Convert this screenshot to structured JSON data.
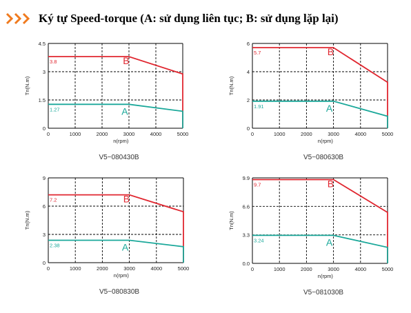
{
  "header": {
    "title": "Ký tự Speed-torque  (A: sử dụng liên tục; B: sử dụng lặp lại)",
    "accent_color": "#f07a1e"
  },
  "colors": {
    "curve_A": "#1aa89a",
    "curve_B": "#e0262f",
    "grid": "#000000"
  },
  "chart_data": [
    {
      "type": "line",
      "caption": "V5−080430B",
      "xlabel": "n(rpm)",
      "ylabel": "Tn(N.m)",
      "xlim": [
        0,
        5000
      ],
      "ylim": [
        0,
        4.5
      ],
      "x_ticks": [
        0,
        1000,
        2000,
        3000,
        4000,
        5000
      ],
      "y_ticks": [
        "0",
        "1.5",
        "3",
        "4.5"
      ],
      "series": [
        {
          "name": "B",
          "x": [
            0,
            3000,
            5000,
            5000
          ],
          "y": [
            3.8,
            3.8,
            2.88,
            0
          ],
          "label": "3.8"
        },
        {
          "name": "A",
          "x": [
            0,
            3000,
            5000,
            5000
          ],
          "y": [
            1.27,
            1.27,
            0.9,
            0
          ],
          "label": "1.27"
        }
      ]
    },
    {
      "type": "line",
      "caption": "V5−080630B",
      "xlabel": "n(rpm)",
      "ylabel": "Tn(N.m)",
      "xlim": [
        0,
        5000
      ],
      "ylim": [
        0,
        6
      ],
      "x_ticks": [
        0,
        1000,
        2000,
        3000,
        4000,
        5000
      ],
      "y_ticks": [
        "0",
        "2",
        "4",
        "6"
      ],
      "series": [
        {
          "name": "B",
          "x": [
            0,
            3000,
            5000,
            5000
          ],
          "y": [
            5.7,
            5.7,
            3.25,
            0
          ],
          "label": "5.7"
        },
        {
          "name": "A",
          "x": [
            0,
            3000,
            5000,
            5000
          ],
          "y": [
            1.91,
            1.91,
            0.85,
            0
          ],
          "label": "1.91"
        }
      ]
    },
    {
      "type": "line",
      "caption": "V5−080830B",
      "xlabel": "n(rpm)",
      "ylabel": "Tn(N.m)",
      "xlim": [
        0,
        5000
      ],
      "ylim": [
        0,
        9
      ],
      "x_ticks": [
        0,
        1000,
        2000,
        3000,
        4000,
        5000
      ],
      "y_ticks": [
        "0",
        "3",
        "6",
        "9"
      ],
      "series": [
        {
          "name": "B",
          "x": [
            0,
            3000,
            5000,
            5000
          ],
          "y": [
            7.2,
            7.2,
            5.4,
            0
          ],
          "label": "7.2"
        },
        {
          "name": "A",
          "x": [
            0,
            3000,
            5000,
            5000
          ],
          "y": [
            2.38,
            2.38,
            1.7,
            0
          ],
          "label": "2.38"
        }
      ]
    },
    {
      "type": "line",
      "caption": "V5−081030B",
      "xlabel": "n(rpm)",
      "ylabel": "Tn(N.m)",
      "xlim": [
        0,
        5000
      ],
      "ylim": [
        0,
        9.9
      ],
      "x_ticks": [
        0,
        1000,
        2000,
        3000,
        4000,
        5000
      ],
      "y_ticks": [
        "0.0",
        "3.3",
        "6.6",
        "9.9"
      ],
      "series": [
        {
          "name": "B",
          "x": [
            0,
            3000,
            5000,
            5000
          ],
          "y": [
            9.7,
            9.7,
            5.9,
            0
          ],
          "label": "9.7"
        },
        {
          "name": "A",
          "x": [
            0,
            3000,
            5000,
            5000
          ],
          "y": [
            3.24,
            3.24,
            1.85,
            0
          ],
          "label": "3.24"
        }
      ]
    }
  ]
}
